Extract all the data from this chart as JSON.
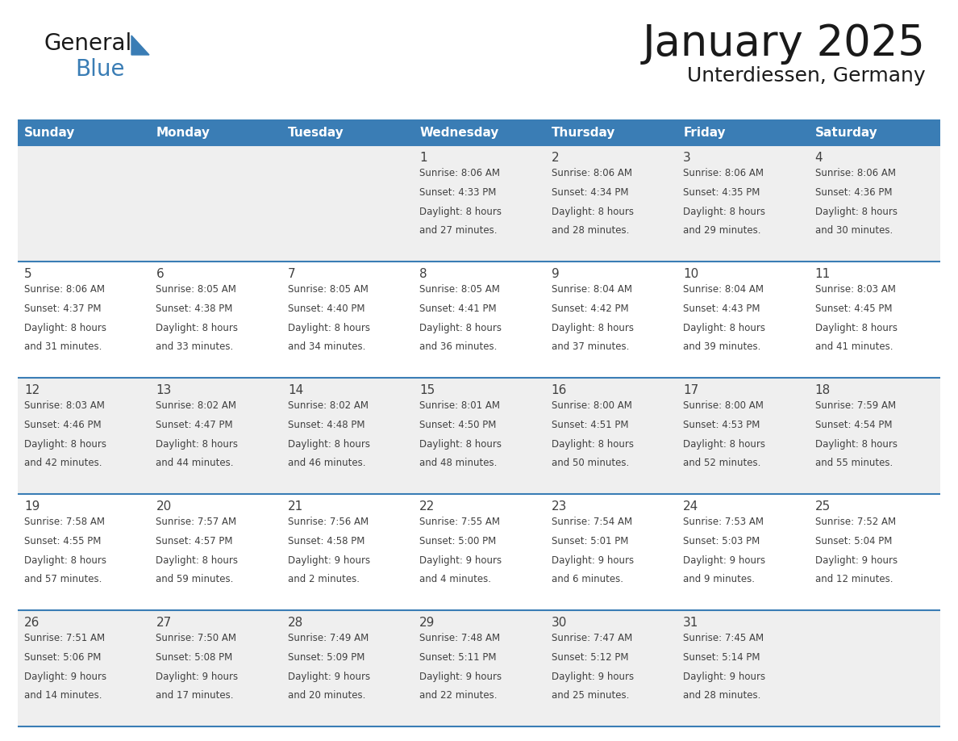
{
  "title": "January 2025",
  "subtitle": "Unterdiessen, Germany",
  "days_of_week": [
    "Sunday",
    "Monday",
    "Tuesday",
    "Wednesday",
    "Thursday",
    "Friday",
    "Saturday"
  ],
  "header_bg_color": "#3A7DB5",
  "header_text_color": "#FFFFFF",
  "cell_bg_color_odd": "#EFEFEF",
  "cell_bg_color_even": "#FFFFFF",
  "divider_color": "#3A7DB5",
  "text_color": "#404040",
  "title_color": "#1a1a1a",
  "subtitle_color": "#1a1a1a",
  "calendar_data": [
    [
      {
        "day": null,
        "sunrise": null,
        "sunset": null,
        "daylight_hours": null,
        "daylight_minutes": null
      },
      {
        "day": null,
        "sunrise": null,
        "sunset": null,
        "daylight_hours": null,
        "daylight_minutes": null
      },
      {
        "day": null,
        "sunrise": null,
        "sunset": null,
        "daylight_hours": null,
        "daylight_minutes": null
      },
      {
        "day": 1,
        "sunrise": "8:06 AM",
        "sunset": "4:33 PM",
        "daylight_hours": 8,
        "daylight_minutes": 27
      },
      {
        "day": 2,
        "sunrise": "8:06 AM",
        "sunset": "4:34 PM",
        "daylight_hours": 8,
        "daylight_minutes": 28
      },
      {
        "day": 3,
        "sunrise": "8:06 AM",
        "sunset": "4:35 PM",
        "daylight_hours": 8,
        "daylight_minutes": 29
      },
      {
        "day": 4,
        "sunrise": "8:06 AM",
        "sunset": "4:36 PM",
        "daylight_hours": 8,
        "daylight_minutes": 30
      }
    ],
    [
      {
        "day": 5,
        "sunrise": "8:06 AM",
        "sunset": "4:37 PM",
        "daylight_hours": 8,
        "daylight_minutes": 31
      },
      {
        "day": 6,
        "sunrise": "8:05 AM",
        "sunset": "4:38 PM",
        "daylight_hours": 8,
        "daylight_minutes": 33
      },
      {
        "day": 7,
        "sunrise": "8:05 AM",
        "sunset": "4:40 PM",
        "daylight_hours": 8,
        "daylight_minutes": 34
      },
      {
        "day": 8,
        "sunrise": "8:05 AM",
        "sunset": "4:41 PM",
        "daylight_hours": 8,
        "daylight_minutes": 36
      },
      {
        "day": 9,
        "sunrise": "8:04 AM",
        "sunset": "4:42 PM",
        "daylight_hours": 8,
        "daylight_minutes": 37
      },
      {
        "day": 10,
        "sunrise": "8:04 AM",
        "sunset": "4:43 PM",
        "daylight_hours": 8,
        "daylight_minutes": 39
      },
      {
        "day": 11,
        "sunrise": "8:03 AM",
        "sunset": "4:45 PM",
        "daylight_hours": 8,
        "daylight_minutes": 41
      }
    ],
    [
      {
        "day": 12,
        "sunrise": "8:03 AM",
        "sunset": "4:46 PM",
        "daylight_hours": 8,
        "daylight_minutes": 42
      },
      {
        "day": 13,
        "sunrise": "8:02 AM",
        "sunset": "4:47 PM",
        "daylight_hours": 8,
        "daylight_minutes": 44
      },
      {
        "day": 14,
        "sunrise": "8:02 AM",
        "sunset": "4:48 PM",
        "daylight_hours": 8,
        "daylight_minutes": 46
      },
      {
        "day": 15,
        "sunrise": "8:01 AM",
        "sunset": "4:50 PM",
        "daylight_hours": 8,
        "daylight_minutes": 48
      },
      {
        "day": 16,
        "sunrise": "8:00 AM",
        "sunset": "4:51 PM",
        "daylight_hours": 8,
        "daylight_minutes": 50
      },
      {
        "day": 17,
        "sunrise": "8:00 AM",
        "sunset": "4:53 PM",
        "daylight_hours": 8,
        "daylight_minutes": 52
      },
      {
        "day": 18,
        "sunrise": "7:59 AM",
        "sunset": "4:54 PM",
        "daylight_hours": 8,
        "daylight_minutes": 55
      }
    ],
    [
      {
        "day": 19,
        "sunrise": "7:58 AM",
        "sunset": "4:55 PM",
        "daylight_hours": 8,
        "daylight_minutes": 57
      },
      {
        "day": 20,
        "sunrise": "7:57 AM",
        "sunset": "4:57 PM",
        "daylight_hours": 8,
        "daylight_minutes": 59
      },
      {
        "day": 21,
        "sunrise": "7:56 AM",
        "sunset": "4:58 PM",
        "daylight_hours": 9,
        "daylight_minutes": 2
      },
      {
        "day": 22,
        "sunrise": "7:55 AM",
        "sunset": "5:00 PM",
        "daylight_hours": 9,
        "daylight_minutes": 4
      },
      {
        "day": 23,
        "sunrise": "7:54 AM",
        "sunset": "5:01 PM",
        "daylight_hours": 9,
        "daylight_minutes": 6
      },
      {
        "day": 24,
        "sunrise": "7:53 AM",
        "sunset": "5:03 PM",
        "daylight_hours": 9,
        "daylight_minutes": 9
      },
      {
        "day": 25,
        "sunrise": "7:52 AM",
        "sunset": "5:04 PM",
        "daylight_hours": 9,
        "daylight_minutes": 12
      }
    ],
    [
      {
        "day": 26,
        "sunrise": "7:51 AM",
        "sunset": "5:06 PM",
        "daylight_hours": 9,
        "daylight_minutes": 14
      },
      {
        "day": 27,
        "sunrise": "7:50 AM",
        "sunset": "5:08 PM",
        "daylight_hours": 9,
        "daylight_minutes": 17
      },
      {
        "day": 28,
        "sunrise": "7:49 AM",
        "sunset": "5:09 PM",
        "daylight_hours": 9,
        "daylight_minutes": 20
      },
      {
        "day": 29,
        "sunrise": "7:48 AM",
        "sunset": "5:11 PM",
        "daylight_hours": 9,
        "daylight_minutes": 22
      },
      {
        "day": 30,
        "sunrise": "7:47 AM",
        "sunset": "5:12 PM",
        "daylight_hours": 9,
        "daylight_minutes": 25
      },
      {
        "day": 31,
        "sunrise": "7:45 AM",
        "sunset": "5:14 PM",
        "daylight_hours": 9,
        "daylight_minutes": 28
      },
      {
        "day": null,
        "sunrise": null,
        "sunset": null,
        "daylight_hours": null,
        "daylight_minutes": null
      }
    ]
  ],
  "logo_text_general": "General",
  "logo_text_blue": "Blue",
  "logo_triangle_color": "#3A7DB5",
  "fig_width": 11.88,
  "fig_height": 9.18,
  "dpi": 100
}
